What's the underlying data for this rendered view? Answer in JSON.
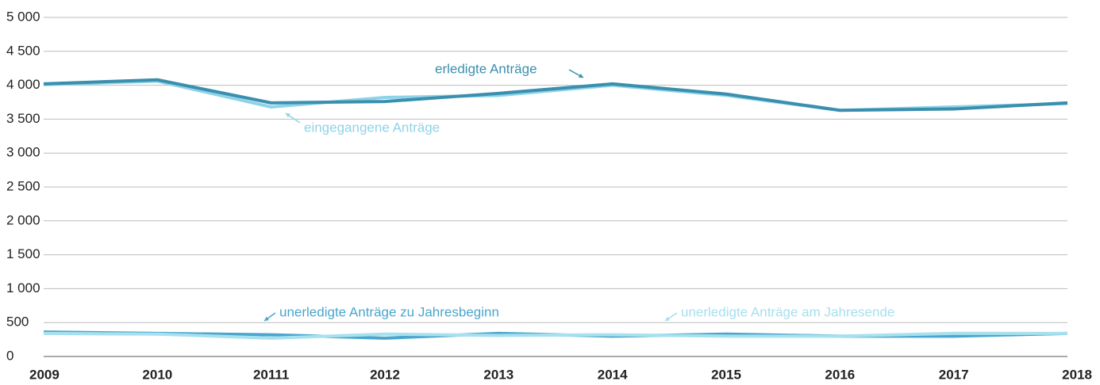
{
  "chart_data": {
    "type": "line",
    "categories": [
      "2009",
      "2010",
      "20111",
      "2012",
      "2013",
      "2014",
      "2015",
      "2016",
      "2017",
      "2018"
    ],
    "series": [
      {
        "name": "eingegangene Anträge",
        "color": "#8fd3e8",
        "values": [
          4010,
          4060,
          3680,
          3820,
          3850,
          4000,
          3850,
          3630,
          3680,
          3730
        ]
      },
      {
        "name": "erledigte Anträge",
        "color": "#3a8fae",
        "values": [
          4020,
          4080,
          3740,
          3760,
          3880,
          4020,
          3870,
          3630,
          3650,
          3740
        ]
      },
      {
        "name": "unerledigte Anträge zu Jahresbeginn",
        "color": "#4aa6cc",
        "values": [
          360,
          340,
          320,
          270,
          340,
          300,
          330,
          300,
          300,
          340
        ]
      },
      {
        "name": "unerledigte Anträge am Jahresende",
        "color": "#a7e0ef",
        "values": [
          340,
          330,
          270,
          330,
          310,
          320,
          300,
          300,
          340,
          340
        ]
      }
    ],
    "ylim": [
      0,
      5000
    ],
    "yticks": [
      0,
      500,
      {
        "value": 1000,
        "label": "1 000"
      },
      {
        "value": 1500,
        "label": "1 500"
      },
      {
        "value": 2000,
        "label": "2 000"
      },
      {
        "value": 2500,
        "label": "2 500"
      },
      {
        "value": 3000,
        "label": "3 000"
      },
      {
        "value": 3500,
        "label": "3 500"
      },
      {
        "value": 4000,
        "label": "4 000"
      },
      {
        "value": 4500,
        "label": "4 500"
      },
      {
        "value": 5000,
        "label": "5 000"
      }
    ],
    "grid": true
  }
}
